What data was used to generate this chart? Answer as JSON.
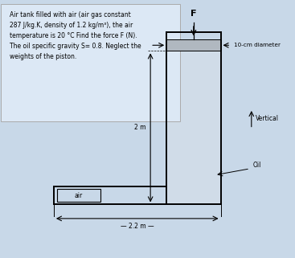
{
  "fig_bg": "#c8d8e8",
  "text_box_color": "#dce8f5",
  "text_box_text": "Air tank filled with air (air gas constant\n287 J/kg.K, density of 1.2 kg/m³), the air\ntemperature is 20 °C Find the force F (N).\nThe oil specific gravity S= 0.8. Neglect the\nweights of the piston.",
  "diagram_label_F": "F",
  "diagram_label_diameter": "10-cm diameter",
  "diagram_label_vertical": "Vertical",
  "diagram_label_2m": "2 m",
  "diagram_label_2_2m": "2.2 m",
  "diagram_label_air": "air",
  "diagram_label_oil": "Oil",
  "oil_color": "#d0dce8",
  "piston_color": "#b0b8c0",
  "tank_lw": 1.4,
  "tank_color": "black"
}
